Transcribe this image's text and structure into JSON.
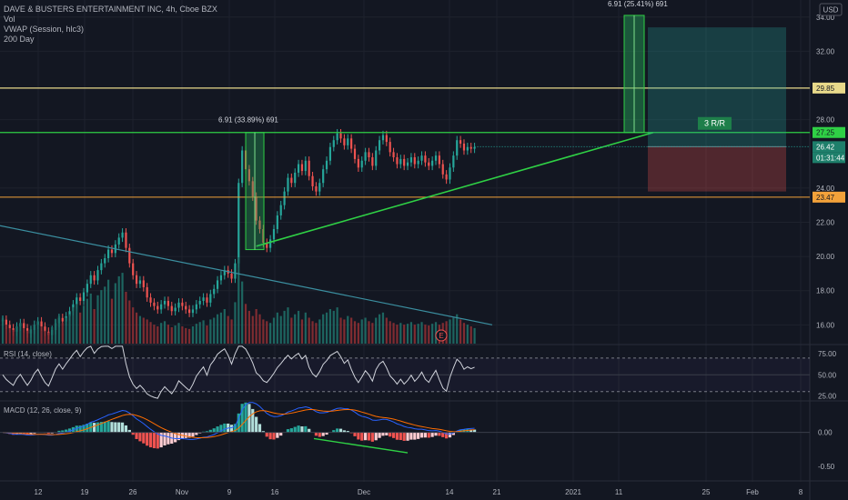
{
  "header": {
    "symbol_line": "DAVE & BUSTERS ENTERTAINMENT INC, 4h, Cboe BZX",
    "indicators": [
      "Vol",
      "VWAP (Session, hlc3)",
      "200 Day"
    ],
    "currency": "USD"
  },
  "rsi_label": "RSI (14, close)",
  "macd_label": "MACD (12, 26, close, 9)",
  "annotations": {
    "measure_1": "6.91 (33.89%) 691",
    "measure_2": "6.91 (25.41%) 691",
    "risk_reward": "3 R/R",
    "earnings_marker": "E"
  },
  "price_badges": {
    "target": "29.85",
    "resistance": "27.25",
    "last": "26.42",
    "countdown": "01:31:44",
    "support": "23.47"
  },
  "colors": {
    "up": "#26a69a",
    "down": "#ef5350",
    "yellow": "#e8d98a",
    "green_line": "#2fd045",
    "orange": "#f3a23a",
    "ma200": "#3b8fa0",
    "rsi": "#d1d4dc"
  },
  "chart_data": {
    "type": "candlestick",
    "price_axis": {
      "ticks": [
        "34.00",
        "32.00",
        "28.00",
        "24.00",
        "22.00",
        "20.00",
        "18.00",
        "16.00"
      ],
      "range": [
        14.9,
        35.0
      ]
    },
    "rsi_axis": {
      "ticks": [
        "75.00",
        "50.00",
        "25.00"
      ],
      "range": [
        20,
        85
      ]
    },
    "macd_axis": {
      "ticks": [
        "0.00",
        "-0.50"
      ],
      "range": [
        -0.7,
        0.45
      ]
    },
    "time_axis": {
      "ticks": [
        "12",
        "19",
        "26",
        "Nov",
        "9",
        "16",
        "Dec",
        "14",
        "21",
        "2021",
        "11",
        "25",
        "Feb",
        "8"
      ]
    },
    "horizontal_levels": [
      {
        "price": 29.85,
        "name": "target"
      },
      {
        "price": 27.25,
        "name": "resistance"
      },
      {
        "price": 23.47,
        "name": "support"
      }
    ],
    "last_price": 26.42,
    "series": [
      {
        "name": "price",
        "close": [
          16.3,
          16.0,
          15.8,
          15.6,
          15.9,
          16.1,
          15.8,
          15.5,
          15.7,
          16.0,
          16.2,
          15.9,
          15.6,
          15.4,
          15.7,
          16.1,
          16.4,
          16.2,
          16.5,
          16.8,
          17.2,
          17.6,
          17.4,
          17.9,
          18.4,
          18.9,
          18.6,
          19.2,
          19.6,
          19.9,
          20.4,
          20.2,
          20.7,
          21.1,
          21.4,
          20.5,
          19.6,
          18.9,
          18.4,
          18.6,
          18.2,
          17.6,
          17.3,
          17.1,
          16.9,
          17.2,
          17.4,
          17.1,
          16.8,
          17.0,
          17.3,
          17.1,
          16.9,
          16.7,
          16.9,
          17.2,
          17.4,
          17.6,
          17.3,
          17.8,
          18.1,
          18.6,
          18.9,
          19.2,
          19.0,
          18.7,
          19.6,
          24.3,
          26.2,
          25.1,
          24.4,
          23.5,
          22.1,
          21.6,
          20.8,
          20.5,
          21.0,
          21.6,
          22.4,
          23.0,
          23.8,
          24.6,
          24.3,
          24.9,
          25.4,
          25.0,
          25.6,
          24.7,
          24.1,
          23.8,
          24.3,
          25.1,
          25.6,
          26.4,
          26.8,
          27.2,
          26.9,
          26.5,
          26.9,
          26.3,
          25.7,
          25.2,
          25.6,
          26.1,
          25.8,
          25.3,
          26.2,
          26.8,
          27.1,
          26.7,
          26.1,
          25.8,
          25.4,
          25.7,
          25.3,
          25.5,
          25.8,
          25.4,
          25.6,
          25.9,
          25.5,
          25.3,
          25.6,
          25.9,
          25.4,
          24.8,
          24.5,
          25.2,
          25.9,
          26.8,
          26.6,
          26.2,
          26.4,
          26.3,
          26.4
        ]
      },
      {
        "name": "volume",
        "values": [
          0.3,
          0.22,
          0.18,
          0.16,
          0.2,
          0.24,
          0.18,
          0.15,
          0.17,
          0.22,
          0.26,
          0.2,
          0.15,
          0.13,
          0.19,
          0.28,
          0.32,
          0.24,
          0.3,
          0.34,
          0.42,
          0.46,
          0.36,
          0.44,
          0.52,
          0.58,
          0.4,
          0.56,
          0.62,
          0.66,
          0.74,
          0.52,
          0.7,
          0.78,
          0.82,
          0.6,
          0.5,
          0.42,
          0.36,
          0.32,
          0.3,
          0.28,
          0.25,
          0.22,
          0.2,
          0.24,
          0.26,
          0.22,
          0.19,
          0.21,
          0.24,
          0.2,
          0.18,
          0.17,
          0.2,
          0.23,
          0.25,
          0.27,
          0.21,
          0.28,
          0.3,
          0.34,
          0.36,
          0.4,
          0.32,
          0.28,
          0.48,
          1.0,
          0.72,
          0.46,
          0.38,
          0.32,
          0.4,
          0.34,
          0.28,
          0.26,
          0.24,
          0.3,
          0.36,
          0.32,
          0.38,
          0.42,
          0.3,
          0.34,
          0.38,
          0.28,
          0.36,
          0.3,
          0.26,
          0.24,
          0.28,
          0.34,
          0.36,
          0.4,
          0.38,
          0.42,
          0.3,
          0.28,
          0.32,
          0.3,
          0.26,
          0.24,
          0.28,
          0.3,
          0.26,
          0.24,
          0.3,
          0.34,
          0.36,
          0.3,
          0.26,
          0.24,
          0.22,
          0.24,
          0.22,
          0.23,
          0.25,
          0.22,
          0.23,
          0.25,
          0.22,
          0.21,
          0.23,
          0.25,
          0.22,
          0.24,
          0.26,
          0.28,
          0.3,
          0.34,
          0.28,
          0.24,
          0.22,
          0.2,
          0.18
        ]
      },
      {
        "name": "ma200",
        "values": [
          21.8,
          16.0
        ]
      }
    ]
  }
}
